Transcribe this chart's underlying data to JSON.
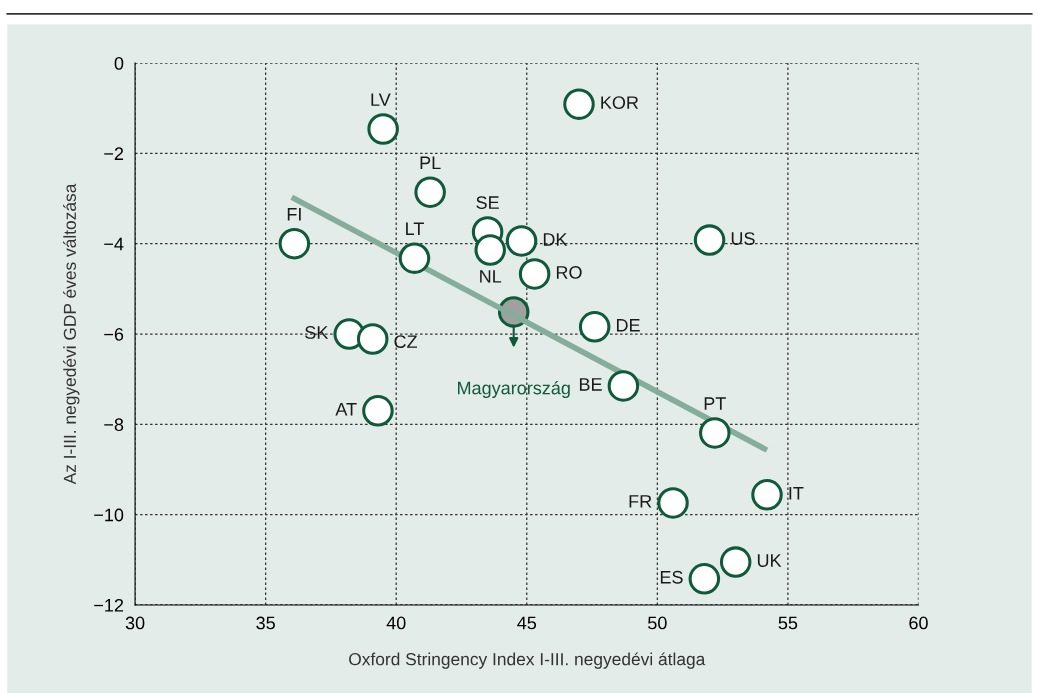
{
  "chart_data": {
    "type": "scatter",
    "xlabel": "Oxford Stringency Index I-III. negyedévi átlaga",
    "ylabel": "Az I-III. negyedévi GDP éves változása",
    "xlim": [
      30,
      60
    ],
    "xticks": [
      30,
      35,
      40,
      45,
      50,
      55,
      60
    ],
    "ylim": [
      -12,
      0
    ],
    "yticks": [
      {
        "value": -12,
        "label": "−12"
      },
      {
        "value": -10,
        "label": "−10"
      },
      {
        "value": -8,
        "label": "−8"
      },
      {
        "value": -6,
        "label": "−6"
      },
      {
        "value": -4,
        "label": "−4"
      },
      {
        "value": -2,
        "label": "−2"
      },
      0
    ],
    "grid": true,
    "marker": "circle",
    "series": [
      {
        "type": "line",
        "marker": "none",
        "color": "#84ad9c",
        "x": [
          36.0,
          54.2
        ],
        "values": [
          -2.97,
          -8.57
        ]
      },
      {
        "color": "#ffffff",
        "x": [
          39.5,
          47.0,
          41.3,
          36.1,
          40.7,
          43.5,
          43.6,
          44.8,
          45.3,
          52.0,
          38.2,
          39.1,
          47.6,
          48.7,
          39.3,
          52.2,
          50.6,
          54.2,
          51.8,
          53.0
        ],
        "values": [
          -1.46,
          -0.91,
          -2.86,
          -4.0,
          -4.32,
          -3.74,
          -4.14,
          -3.94,
          -4.67,
          -3.92,
          -6.0,
          -6.11,
          -5.84,
          -7.15,
          -7.7,
          -8.19,
          -9.74,
          -9.56,
          -11.42,
          -11.05
        ]
      },
      {
        "name": "Magyarország",
        "color": "#a0a0a0",
        "x": [
          44.5
        ],
        "values": [
          -5.51
        ]
      }
    ],
    "annotations": [
      {
        "text": "LV",
        "x": 39.5,
        "y": -1.46
      },
      {
        "text": "KOR",
        "x": 47.0,
        "y": -0.91
      },
      {
        "text": "PL",
        "x": 41.3,
        "y": -2.86
      },
      {
        "text": "FI",
        "x": 36.1,
        "y": -4.0
      },
      {
        "text": "LT",
        "x": 40.7,
        "y": -4.32
      },
      {
        "text": "SE",
        "x": 43.5,
        "y": -3.74
      },
      {
        "text": "NL",
        "x": 43.6,
        "y": -4.14
      },
      {
        "text": "DK",
        "x": 44.8,
        "y": -3.94
      },
      {
        "text": "RO",
        "x": 45.3,
        "y": -4.67
      },
      {
        "text": "US",
        "x": 52.0,
        "y": -3.92
      },
      {
        "text": "SK",
        "x": 38.2,
        "y": -6.0
      },
      {
        "text": "CZ",
        "x": 39.1,
        "y": -6.11
      },
      {
        "text": "DE",
        "x": 47.6,
        "y": -5.84
      },
      {
        "text": "BE",
        "x": 48.7,
        "y": -7.15
      },
      {
        "text": "AT",
        "x": 39.3,
        "y": -7.7
      },
      {
        "text": "PT",
        "x": 52.2,
        "y": -8.19
      },
      {
        "text": "FR",
        "x": 50.6,
        "y": -9.74
      },
      {
        "text": "IT",
        "x": 54.2,
        "y": -9.56
      },
      {
        "text": "ES",
        "x": 51.8,
        "y": -11.42
      },
      {
        "text": "UK",
        "x": 53.0,
        "y": -11.05
      }
    ]
  }
}
